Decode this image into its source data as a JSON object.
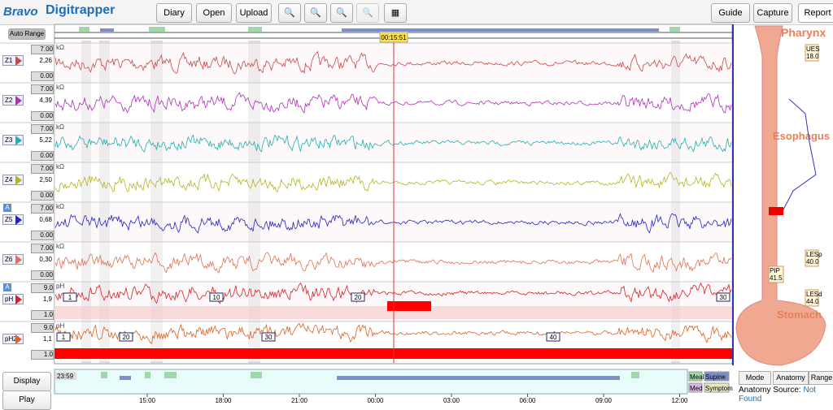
{
  "logo": {
    "brand": "Bravo",
    "product": "Digitrapper"
  },
  "toolbar": {
    "left": [
      "Diary",
      "Open",
      "Upload"
    ],
    "right": [
      "Guide",
      "Capture",
      "Report"
    ]
  },
  "auto_range": "Auto Range",
  "cursor_time": "00:15:51",
  "channels": [
    {
      "name": "Z1",
      "max": "7.00",
      "value": "2,26",
      "min": "0.00",
      "unit": "kΩ",
      "color": "#c84848"
    },
    {
      "name": "Z2",
      "max": "7.00",
      "value": "4,39",
      "min": "0.00",
      "unit": "kΩ",
      "color": "#b030b8"
    },
    {
      "name": "Z3",
      "max": "7.00",
      "value": "5,22",
      "min": "0.00",
      "unit": "kΩ",
      "color": "#20b0b0"
    },
    {
      "name": "Z4",
      "max": "7.00",
      "value": "2,50",
      "min": "0.00",
      "unit": "kΩ",
      "color": "#b4b420"
    },
    {
      "name": "Z5",
      "badge": "A",
      "max": "7.00",
      "value": "0,68",
      "min": "0.00",
      "unit": "kΩ",
      "color": "#2424c0"
    },
    {
      "name": "Z6",
      "max": "7.00",
      "value": "0,30",
      "min": "0.00",
      "unit": "kΩ",
      "color": "#e07050"
    },
    {
      "name": "pH",
      "badge": "A",
      "max": "9.0",
      "value": "1,9",
      "min": "1.0",
      "unit": "pH",
      "color": "#d82020",
      "events": [
        "1",
        "10",
        "20",
        "30"
      ]
    },
    {
      "name": "pH2",
      "max": "9.0",
      "value": "1,1",
      "min": "1.0",
      "unit": "pH",
      "color": "#e06020",
      "events": [
        "1",
        "20",
        "30",
        "40"
      ]
    }
  ],
  "anatomy": {
    "regions": [
      "Pharynx",
      "Esophagus",
      "Stomach"
    ],
    "markers": [
      {
        "label": "UES",
        "value": "18.0"
      },
      {
        "label": "LESp",
        "value": "40.0"
      },
      {
        "label": "PIP",
        "value": "41.5"
      },
      {
        "label": "LESd",
        "value": "44.0"
      }
    ]
  },
  "bottom": {
    "display_mode": "Display Mode",
    "play": "Play",
    "overview_time": "23:59",
    "time_axis": [
      "15:00",
      "18:00",
      "21:00",
      "00:00",
      "03:00",
      "06:00",
      "09:00",
      "12:00"
    ],
    "legend": [
      "Meal",
      "Supine",
      "Med",
      "Symptom"
    ],
    "tabs": [
      "Mode",
      "Anatomy",
      "Range"
    ],
    "anatomy_source_label": "Anatomy Source:",
    "anatomy_source_value": "Not Found"
  }
}
